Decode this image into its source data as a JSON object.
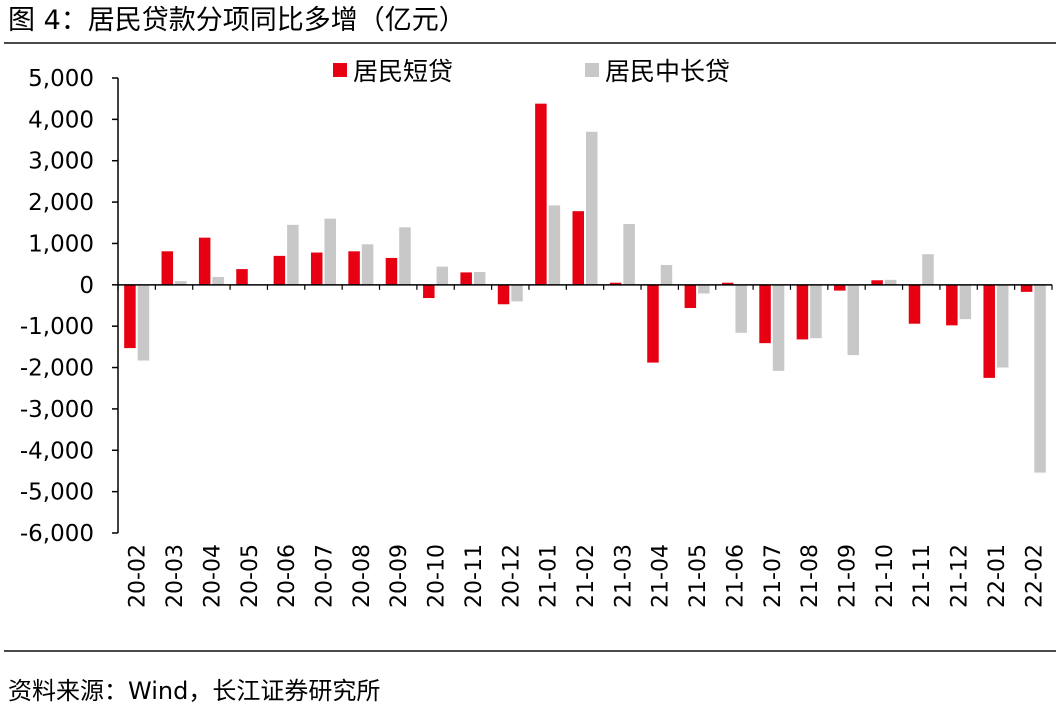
{
  "figure": {
    "title": "图 4：居民贷款分项同比多增（亿元）",
    "source": "资料来源：Wind，长江证券研究所"
  },
  "colors": {
    "short": "#e60012",
    "long": "#c8c8c8",
    "axis": "#000000",
    "rule": "#4a4a4a"
  },
  "chart_data": {
    "type": "bar",
    "title": "居民贷款分项同比多增（亿元）",
    "xlabel": "",
    "ylabel": "",
    "ylim": [
      -6000,
      5000
    ],
    "yticks": [
      5000,
      4000,
      3000,
      2000,
      1000,
      0,
      -1000,
      -2000,
      -3000,
      -4000,
      -5000,
      -6000
    ],
    "ytick_labels": [
      "5,000",
      "4,000",
      "3,000",
      "2,000",
      "1,000",
      "0",
      "-1,000",
      "-2,000",
      "-3,000",
      "-4,000",
      "-5,000",
      "-6,000"
    ],
    "grid": false,
    "legend_position": "top-center",
    "categories": [
      "20-02",
      "20-03",
      "20-04",
      "20-05",
      "20-06",
      "20-07",
      "20-08",
      "20-09",
      "20-10",
      "20-11",
      "20-12",
      "21-01",
      "21-02",
      "21-03",
      "21-04",
      "21-05",
      "21-06",
      "21-07",
      "21-08",
      "21-09",
      "21-10",
      "21-11",
      "21-12",
      "22-01",
      "22-02"
    ],
    "series": [
      {
        "name": "居民短贷",
        "color": "#e60012",
        "values": [
          -1530,
          810,
          1140,
          380,
          700,
          780,
          810,
          650,
          -320,
          300,
          -470,
          4380,
          1780,
          50,
          -1880,
          -560,
          50,
          -1410,
          -1320,
          -140,
          110,
          -940,
          -980,
          -2250,
          -170
        ]
      },
      {
        "name": "居民中长贷",
        "color": "#c8c8c8",
        "values": [
          -1830,
          90,
          190,
          0,
          1450,
          1600,
          980,
          1390,
          440,
          310,
          -400,
          1920,
          3700,
          1470,
          480,
          -210,
          -1160,
          -2080,
          -1290,
          -1700,
          120,
          740,
          -830,
          -2000,
          -4540
        ]
      }
    ]
  }
}
